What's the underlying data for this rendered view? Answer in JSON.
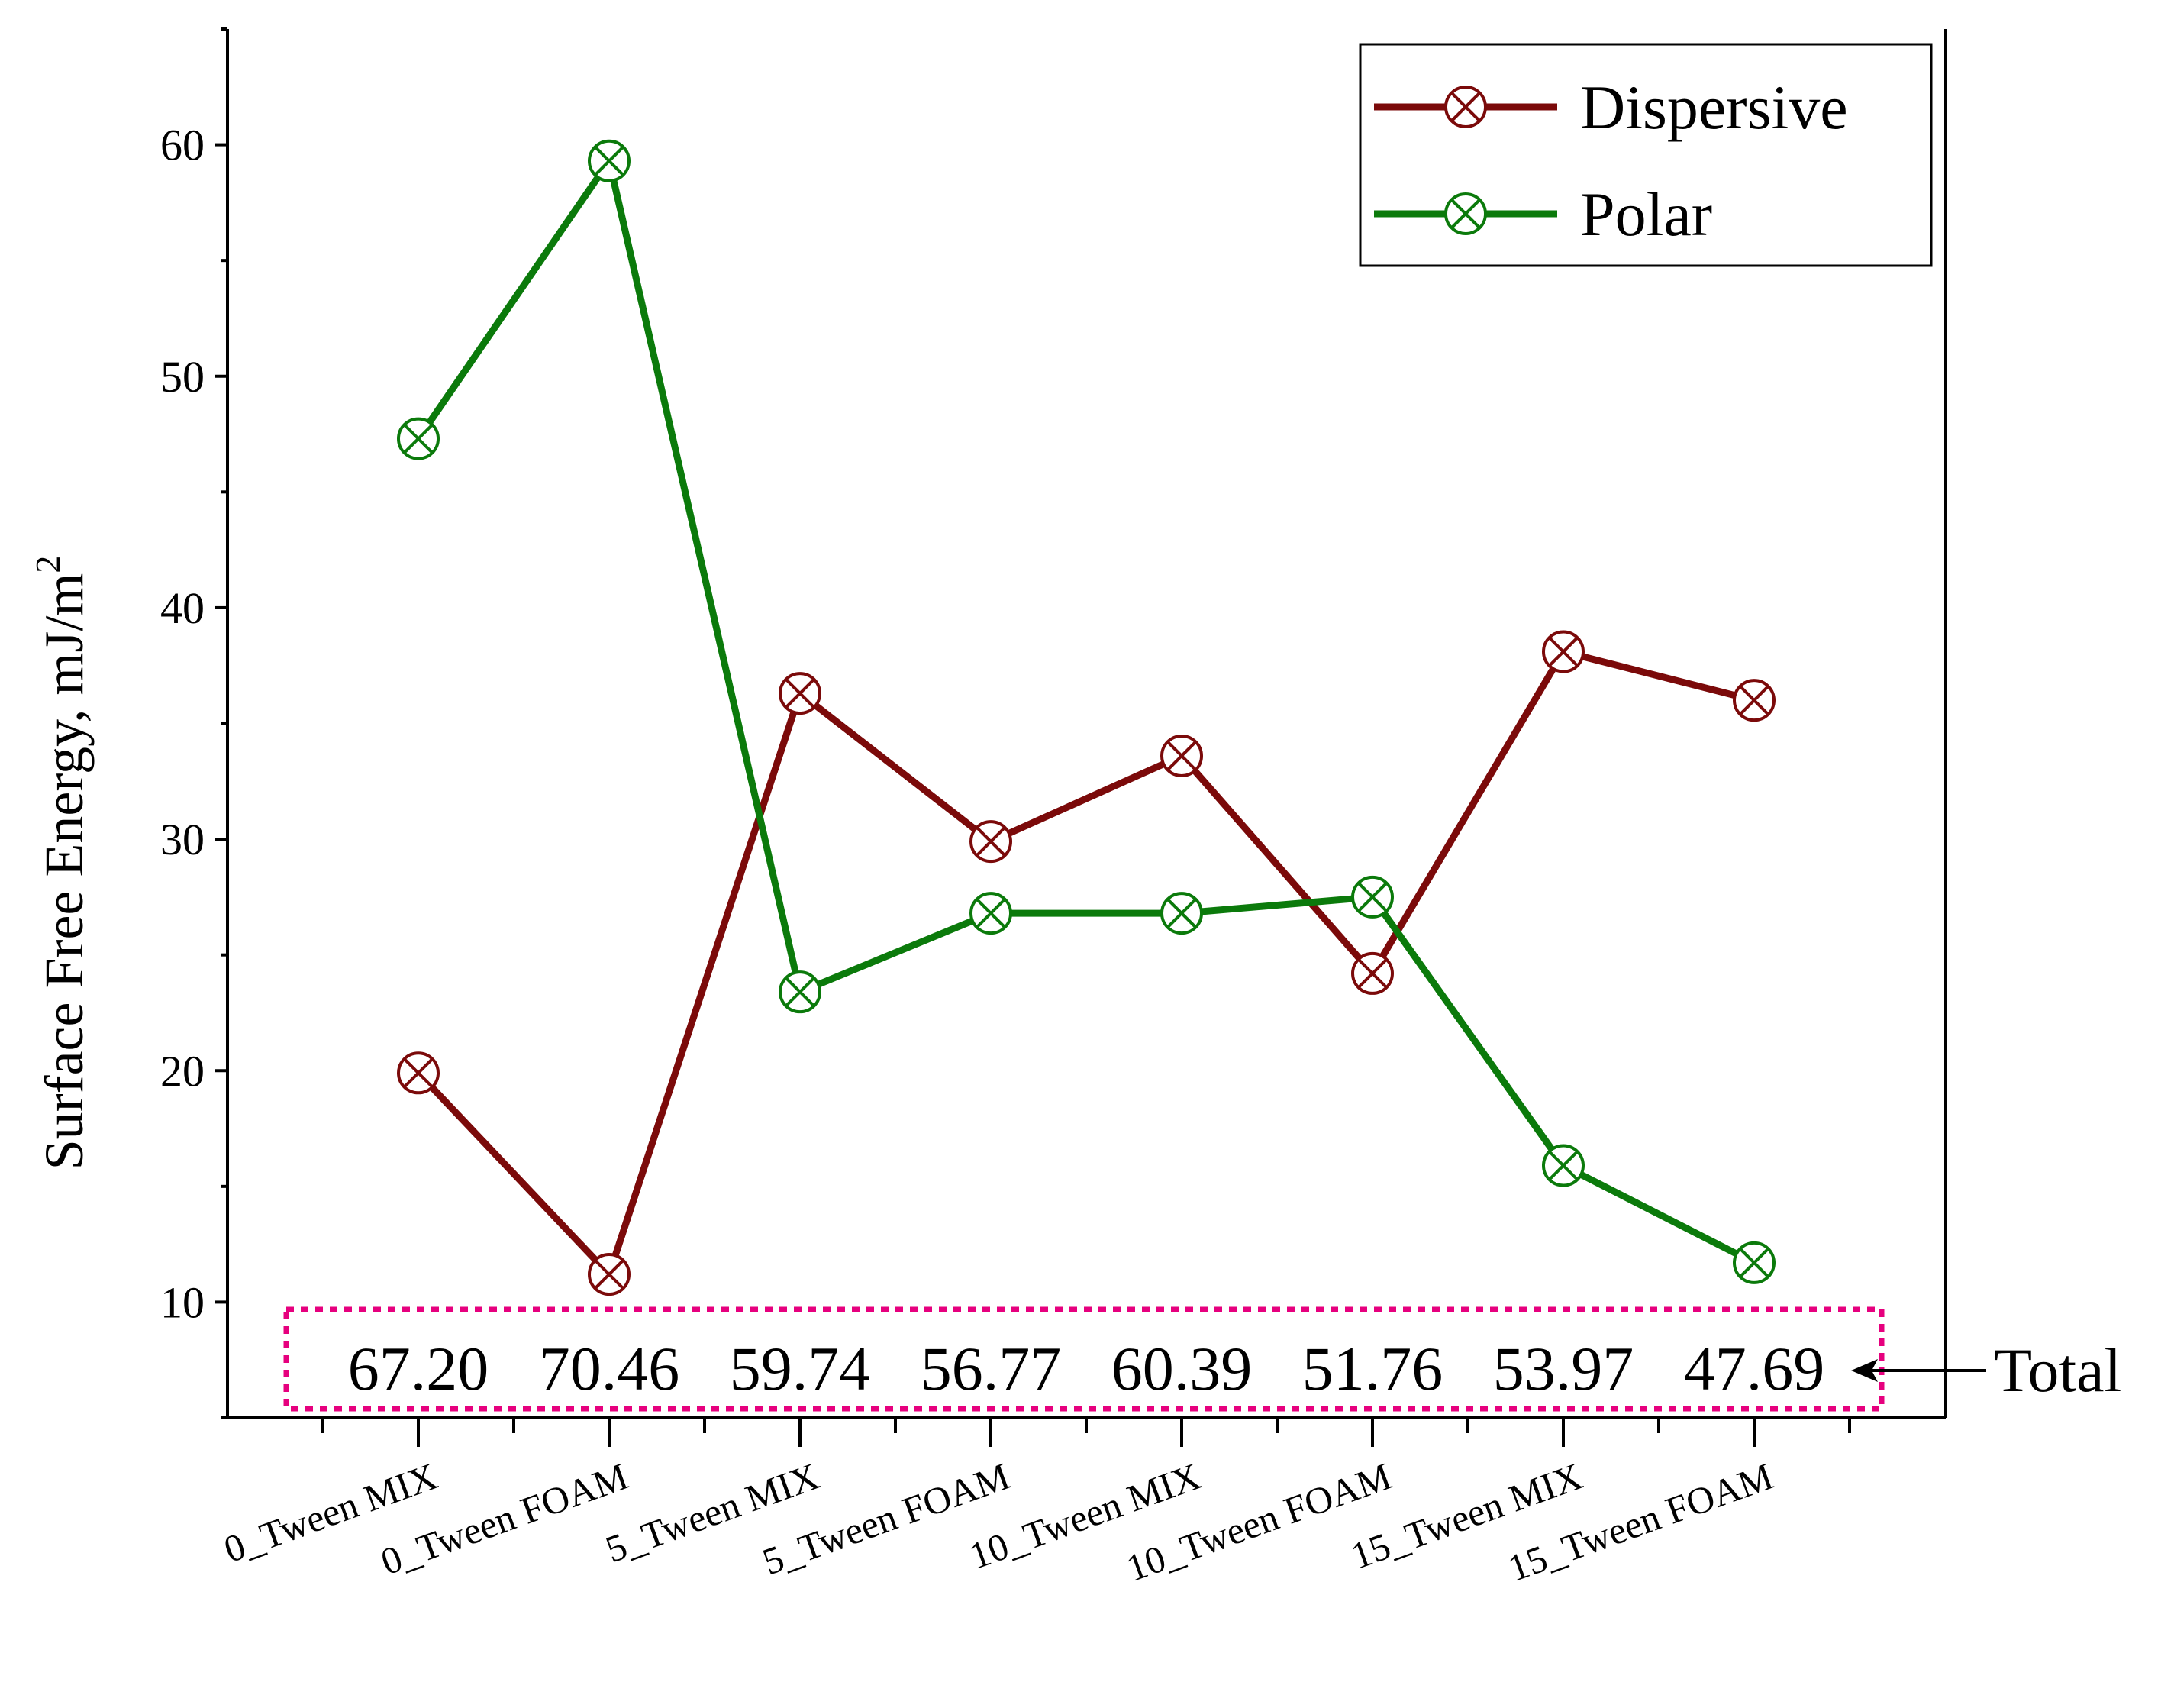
{
  "chart_data": {
    "type": "line",
    "categories": [
      "0_Tween MIX",
      "0_Tween FOAM",
      "5_Tween MIX",
      "5_Tween FOAM",
      "10_Tween MIX",
      "10_Tween FOAM",
      "15_Tween MIX",
      "15_Tween FOAM"
    ],
    "series": [
      {
        "name": "Dispersive",
        "color": "#7b0a0a",
        "marker": "circled-x",
        "values": [
          19.9,
          11.2,
          36.3,
          29.9,
          33.6,
          24.2,
          38.1,
          36.0
        ]
      },
      {
        "name": "Polar",
        "color": "#0b7a0b",
        "marker": "circled-x",
        "values": [
          47.3,
          59.3,
          23.4,
          26.8,
          26.8,
          27.5,
          15.9,
          11.7
        ]
      }
    ],
    "totals": [
      "67.20",
      "70.46",
      "59.74",
      "56.77",
      "60.39",
      "51.76",
      "53.97",
      "47.69"
    ],
    "totals_label": "Total",
    "totals_box_color": "#e6007e",
    "ylabel": "Surface Free Energy, mJ/m",
    "ylabel_superscript": "2",
    "xlabel": "",
    "ylim": [
      5,
      65
    ],
    "yticks": [
      "10",
      "20",
      "30",
      "40",
      "50",
      "60"
    ],
    "legend_position": "top-right",
    "grid": false
  }
}
